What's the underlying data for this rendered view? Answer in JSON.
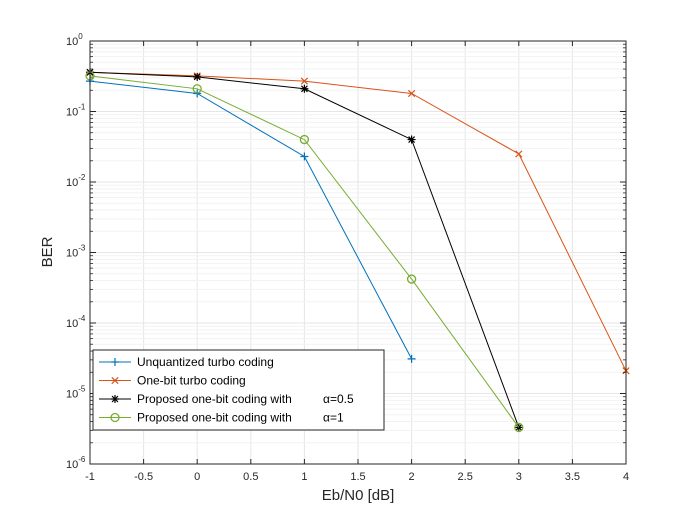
{
  "chart_data": {
    "type": "line",
    "xlabel": "Eb/N0 [dB]",
    "ylabel": "BER",
    "y_scale": "log",
    "xlim": [
      -1,
      4
    ],
    "ylim": [
      1e-06,
      1
    ],
    "x_ticks": [
      -1,
      -0.5,
      0,
      0.5,
      1,
      1.5,
      2,
      2.5,
      3,
      3.5,
      4
    ],
    "x_tick_labels": [
      "-1",
      "-0.5",
      "0",
      "0.5",
      "1",
      "1.5",
      "2",
      "2.5",
      "3",
      "3.5",
      "4"
    ],
    "y_ticks": [
      {
        "value": 1,
        "base": "10",
        "exp": "0"
      },
      {
        "value": 0.1,
        "base": "10",
        "exp": "-1"
      },
      {
        "value": 0.01,
        "base": "10",
        "exp": "-2"
      },
      {
        "value": 0.001,
        "base": "10",
        "exp": "-3"
      },
      {
        "value": 0.0001,
        "base": "10",
        "exp": "-4"
      },
      {
        "value": 1e-05,
        "base": "10",
        "exp": "-5"
      },
      {
        "value": 1e-06,
        "base": "10",
        "exp": "-6"
      }
    ],
    "legend_position": "bottom-left",
    "series": [
      {
        "name": "Unquantized turbo coding",
        "label_prefix": "Unquantized turbo coding",
        "alpha_text": "",
        "color": "#0072BD",
        "marker": "plus",
        "x": [
          -1,
          0,
          1,
          2
        ],
        "y": [
          0.27,
          0.18,
          0.023,
          3.1e-05
        ]
      },
      {
        "name": "One-bit turbo coding",
        "label_prefix": "One-bit turbo coding",
        "alpha_text": "",
        "color": "#D95319",
        "marker": "x",
        "x": [
          -1,
          0,
          1,
          2,
          3,
          4
        ],
        "y": [
          0.36,
          0.32,
          0.27,
          0.18,
          0.025,
          2.1e-05
        ]
      },
      {
        "name": "Proposed one-bit coding with α=0.5",
        "label_prefix": "Proposed one-bit coding with",
        "alpha_text": "α=0.5",
        "color": "#000000",
        "marker": "star",
        "x": [
          -1,
          0,
          1,
          2,
          3
        ],
        "y": [
          0.36,
          0.31,
          0.21,
          0.04,
          3.3e-06
        ]
      },
      {
        "name": "Proposed one-bit coding with α=1",
        "label_prefix": "Proposed one-bit coding with",
        "alpha_text": "α=1",
        "color": "#77AC30",
        "marker": "circle",
        "x": [
          -1,
          0,
          1,
          2,
          3
        ],
        "y": [
          0.32,
          0.21,
          0.04,
          0.00042,
          3.3e-06
        ]
      }
    ]
  }
}
